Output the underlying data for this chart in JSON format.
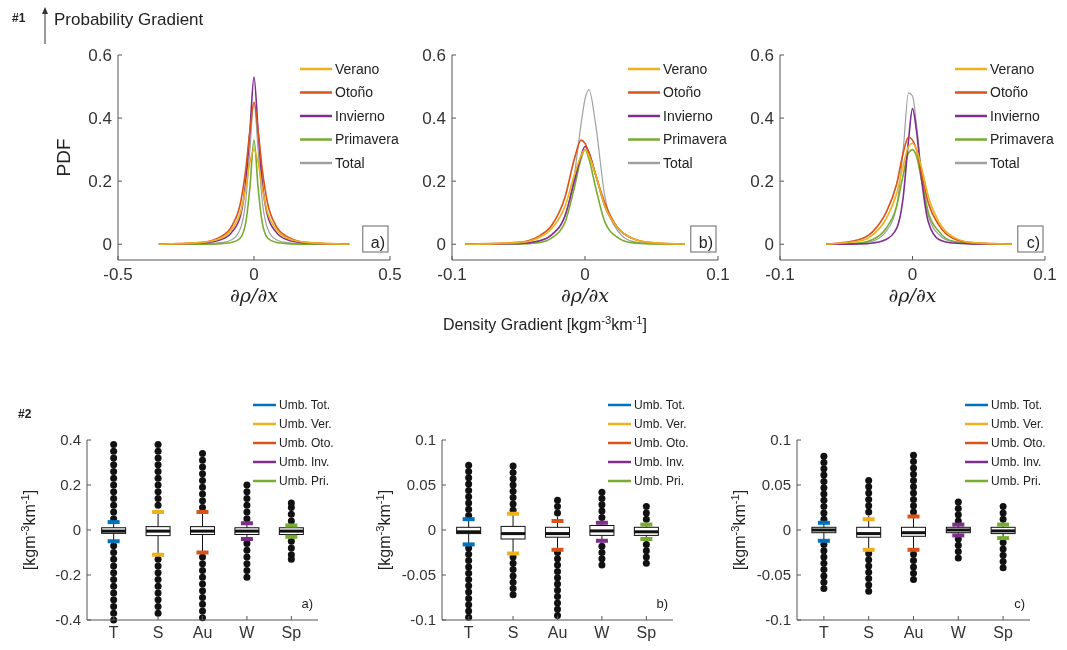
{
  "chart_data": [
    {
      "type": "line",
      "xlabel": "∂ρ/∂x",
      "ylabel": "PDF",
      "annotations": [
        "#1",
        "Probability Gradient",
        "a)"
      ],
      "legend": "top right",
      "xlim": [
        -0.5,
        0.5
      ],
      "xticks": [
        -0.5,
        0,
        0.5
      ],
      "ylim": [
        -0.05,
        0.6
      ],
      "yticks": [
        0,
        0.2,
        0.4,
        0.6
      ],
      "x": [
        -0.35,
        -0.2,
        -0.12,
        -0.08,
        -0.05,
        -0.03,
        -0.015,
        0,
        0.015,
        0.03,
        0.05,
        0.08,
        0.12,
        0.2,
        0.35
      ],
      "series": [
        {
          "name": "Verano",
          "color": "#edb120",
          "values": [
            0,
            0.005,
            0.02,
            0.05,
            0.1,
            0.18,
            0.26,
            0.3,
            0.26,
            0.18,
            0.1,
            0.05,
            0.02,
            0.005,
            0
          ]
        },
        {
          "name": "Otoño",
          "color": "#d95319",
          "values": [
            0,
            0.005,
            0.025,
            0.06,
            0.13,
            0.24,
            0.36,
            0.45,
            0.36,
            0.24,
            0.13,
            0.06,
            0.025,
            0.005,
            0
          ]
        },
        {
          "name": "Invierno",
          "color": "#7e2f8e",
          "values": [
            0,
            0.003,
            0.015,
            0.04,
            0.09,
            0.2,
            0.36,
            0.53,
            0.36,
            0.2,
            0.09,
            0.04,
            0.015,
            0.003,
            0
          ]
        },
        {
          "name": "Primavera",
          "color": "#77ac30",
          "values": [
            0,
            0,
            0.002,
            0.006,
            0.02,
            0.07,
            0.18,
            0.33,
            0.18,
            0.07,
            0.02,
            0.006,
            0.002,
            0,
            0
          ]
        },
        {
          "name": "Total",
          "color": "#a0a0a0",
          "values": [
            0,
            0.001,
            0.005,
            0.015,
            0.05,
            0.14,
            0.3,
            0.45,
            0.3,
            0.14,
            0.05,
            0.015,
            0.005,
            0.001,
            0
          ]
        }
      ]
    },
    {
      "type": "line",
      "xlabel": "∂ρ/∂x",
      "annotations": [
        "b)",
        "Density Gradient [kgm$^{-3}$km$^{-1}$]"
      ],
      "legend": "top right",
      "xlim": [
        -0.1,
        0.1
      ],
      "xticks": [
        -0.1,
        0,
        0.1
      ],
      "ylim": [
        -0.05,
        0.6
      ],
      "yticks": [
        0,
        0.2,
        0.4,
        0.6
      ],
      "x": [
        -0.09,
        -0.05,
        -0.035,
        -0.025,
        -0.015,
        -0.008,
        -0.003,
        0,
        0.003,
        0.008,
        0.015,
        0.025,
        0.035,
        0.05,
        0.075
      ],
      "series": [
        {
          "name": "Verano",
          "color": "#edb120",
          "values": [
            0,
            0.005,
            0.02,
            0.05,
            0.12,
            0.22,
            0.28,
            0.3,
            0.28,
            0.22,
            0.12,
            0.05,
            0.02,
            0.005,
            0
          ]
        },
        {
          "name": "Otoño",
          "color": "#d95319",
          "values": [
            0,
            0.006,
            0.025,
            0.06,
            0.15,
            0.27,
            0.33,
            0.32,
            0.29,
            0.22,
            0.13,
            0.05,
            0.02,
            0.005,
            0
          ]
        },
        {
          "name": "Invierno",
          "color": "#7e2f8e",
          "values": [
            0,
            0.002,
            0.01,
            0.03,
            0.09,
            0.2,
            0.28,
            0.31,
            0.29,
            0.22,
            0.12,
            0.05,
            0.02,
            null,
            null
          ]
        },
        {
          "name": "Primavera",
          "color": "#77ac30",
          "values": [
            0,
            0.001,
            0.005,
            0.02,
            0.07,
            0.18,
            0.27,
            0.3,
            0.27,
            0.18,
            0.07,
            0.02,
            0.005,
            0.001,
            0
          ]
        },
        {
          "name": "Total",
          "color": "#a0a0a0",
          "values": [
            0,
            0.002,
            0.01,
            0.03,
            0.09,
            0.22,
            0.38,
            0.46,
            0.49,
            0.38,
            0.15,
            0.04,
            0.01,
            0.002,
            0
          ]
        }
      ]
    },
    {
      "type": "line",
      "xlabel": "∂ρ/∂x",
      "annotations": [
        "c)"
      ],
      "legend": "top right",
      "xlim": [
        -0.1,
        0.1
      ],
      "xticks": [
        -0.1,
        0,
        0.1
      ],
      "ylim": [
        -0.05,
        0.6
      ],
      "yticks": [
        0,
        0.2,
        0.4,
        0.6
      ],
      "x": [
        -0.065,
        -0.04,
        -0.03,
        -0.02,
        -0.012,
        -0.007,
        -0.003,
        0,
        0.003,
        0.007,
        0.012,
        0.02,
        0.03,
        0.045,
        0.075
      ],
      "series": [
        {
          "name": "Verano",
          "color": "#edb120",
          "values": [
            0,
            0.01,
            0.03,
            0.08,
            0.16,
            0.25,
            0.31,
            0.32,
            0.3,
            0.24,
            0.15,
            0.07,
            0.025,
            0.005,
            0
          ]
        },
        {
          "name": "Otoño",
          "color": "#d95319",
          "values": [
            0,
            0.015,
            0.04,
            0.1,
            0.19,
            0.29,
            0.34,
            0.33,
            0.3,
            0.22,
            0.13,
            0.06,
            0.02,
            0.005,
            0
          ]
        },
        {
          "name": "Invierno",
          "color": "#7e2f8e",
          "values": [
            0,
            0.001,
            0.004,
            0.015,
            0.05,
            0.15,
            0.33,
            0.43,
            0.36,
            0.2,
            0.07,
            0.015,
            0.004,
            0.001,
            0
          ]
        },
        {
          "name": "Primavera",
          "color": "#77ac30",
          "values": [
            0,
            0.004,
            0.015,
            0.05,
            0.12,
            0.22,
            0.29,
            0.3,
            0.28,
            0.2,
            0.1,
            0.04,
            0.01,
            0.002,
            0
          ]
        },
        {
          "name": "Total",
          "color": "#a0a0a0",
          "values": [
            0,
            0.003,
            0.01,
            0.04,
            0.12,
            0.3,
            0.48,
            0.47,
            0.38,
            0.22,
            0.09,
            0.03,
            0.008,
            0.002,
            0
          ]
        }
      ]
    },
    {
      "type": "box",
      "color": "#111111",
      "ylabel": "[kgm$^{-3}$km$^{-1}$]",
      "annotations": [
        "#2",
        "a)"
      ],
      "legend": "top right",
      "categories": [
        "T",
        "S",
        "Au",
        "W",
        "Sp"
      ],
      "ylim": [
        -0.4,
        0.4
      ],
      "yticks": [
        -0.4,
        -0.2,
        0,
        0.2,
        0.4
      ],
      "boxes": [
        {
          "low": -0.05,
          "q1": -0.015,
          "median": -0.005,
          "q3": 0.01,
          "high": 0.04,
          "outliers": [
            0.05,
            0.08,
            0.11,
            0.14,
            0.17,
            0.2,
            0.23,
            0.26,
            0.29,
            0.32,
            0.35,
            0.38,
            -0.07,
            -0.1,
            -0.13,
            -0.16,
            -0.19,
            -0.22,
            -0.25,
            -0.28,
            -0.31,
            -0.34,
            -0.37,
            -0.4
          ]
        },
        {
          "low": -0.11,
          "q1": -0.025,
          "median": -0.005,
          "q3": 0.015,
          "high": 0.09,
          "outliers": [
            0.11,
            0.14,
            0.17,
            0.2,
            0.23,
            0.26,
            0.29,
            0.32,
            0.35,
            0.38,
            -0.13,
            -0.16,
            -0.19,
            -0.22,
            -0.25,
            -0.28,
            -0.31,
            -0.34,
            -0.37
          ]
        },
        {
          "low": -0.1,
          "q1": -0.02,
          "median": -0.005,
          "q3": 0.015,
          "high": 0.08,
          "outliers": [
            0.1,
            0.13,
            0.16,
            0.19,
            0.22,
            0.25,
            0.28,
            0.31,
            0.34,
            -0.12,
            -0.15,
            -0.18,
            -0.21,
            -0.24,
            -0.27,
            -0.3,
            -0.33,
            -0.36,
            -0.39
          ]
        },
        {
          "low": -0.04,
          "q1": -0.02,
          "median": -0.005,
          "q3": 0.01,
          "high": 0.03,
          "outliers": [
            0.05,
            0.08,
            0.11,
            0.14,
            0.17,
            0.2,
            -0.06,
            -0.09,
            -0.12,
            -0.15,
            -0.18,
            -0.21
          ]
        },
        {
          "low": -0.03,
          "q1": -0.02,
          "median": -0.005,
          "q3": 0.01,
          "high": 0.02,
          "outliers": [
            0.04,
            0.07,
            0.1,
            0.12,
            -0.05,
            -0.08,
            -0.11,
            -0.13
          ]
        }
      ],
      "series": [
        {
          "name": "Umb. Tot.",
          "type": "scatter",
          "color": "#0072bd",
          "x": [
            "T",
            "T"
          ],
          "values": [
            0.035,
            -0.05
          ]
        },
        {
          "name": "Umb. Ver.",
          "type": "scatter",
          "color": "#edb120",
          "x": [
            "S",
            "S"
          ],
          "values": [
            0.08,
            -0.11
          ]
        },
        {
          "name": "Umb. Oto.",
          "type": "scatter",
          "color": "#d95319",
          "x": [
            "Au",
            "Au"
          ],
          "values": [
            0.08,
            -0.1
          ]
        },
        {
          "name": "Umb. Inv.",
          "type": "scatter",
          "color": "#7e2f8e",
          "x": [
            "W",
            "W"
          ],
          "values": [
            0.03,
            -0.04
          ]
        },
        {
          "name": "Umb. Pri.",
          "type": "scatter",
          "color": "#77ac30",
          "x": [
            "Sp",
            "Sp"
          ],
          "values": [
            0.02,
            -0.03
          ]
        }
      ]
    },
    {
      "type": "box",
      "color": "#111111",
      "ylabel": "[kgm$^{-3}$km$^{-1}$]",
      "annotations": [
        "b)"
      ],
      "legend": "top right",
      "categories": [
        "T",
        "S",
        "Au",
        "W",
        "Sp"
      ],
      "ylim": [
        -0.1,
        0.1
      ],
      "yticks": [
        -0.1,
        -0.05,
        0,
        0.05,
        0.1
      ],
      "boxes": [
        {
          "low": -0.017,
          "q1": -0.004,
          "median": -0.002,
          "q3": 0.003,
          "high": 0.012,
          "outliers": [
            0.016,
            0.023,
            0.03,
            0.037,
            0.044,
            0.051,
            0.058,
            0.065,
            0.072,
            -0.02,
            -0.027,
            -0.034,
            -0.041,
            -0.048,
            -0.055,
            -0.062,
            -0.069,
            -0.076,
            -0.083,
            -0.09,
            -0.097
          ]
        },
        {
          "low": -0.026,
          "q1": -0.01,
          "median": -0.004,
          "q3": 0.004,
          "high": 0.018,
          "outliers": [
            0.022,
            0.029,
            0.036,
            0.043,
            0.05,
            0.057,
            0.064,
            0.071,
            -0.03,
            -0.037,
            -0.044,
            -0.051,
            -0.058,
            -0.065,
            -0.072
          ]
        },
        {
          "low": -0.022,
          "q1": -0.008,
          "median": -0.004,
          "q3": 0.003,
          "high": 0.015,
          "outliers": [
            0.019,
            0.026,
            0.033,
            -0.025,
            -0.032,
            -0.039,
            -0.046,
            -0.053,
            -0.06,
            -0.067,
            -0.074,
            -0.081,
            -0.088,
            -0.095
          ]
        },
        {
          "low": -0.014,
          "q1": -0.006,
          "median": -0.001,
          "q3": 0.005,
          "high": 0.01,
          "outliers": [
            0.014,
            0.021,
            0.028,
            0.035,
            0.042,
            -0.018,
            -0.025,
            -0.032,
            -0.039
          ]
        },
        {
          "low": -0.012,
          "q1": -0.006,
          "median": -0.002,
          "q3": 0.003,
          "high": 0.008,
          "outliers": [
            0.012,
            0.019,
            0.026,
            -0.016,
            -0.023,
            -0.03,
            -0.037
          ]
        }
      ],
      "series": [
        {
          "name": "Umb. Tot.",
          "type": "scatter",
          "color": "#0072bd",
          "x": [
            "T",
            "T"
          ],
          "values": [
            0.012,
            -0.016
          ]
        },
        {
          "name": "Umb. Ver.",
          "type": "scatter",
          "color": "#edb120",
          "x": [
            "S",
            "S"
          ],
          "values": [
            0.018,
            -0.026
          ]
        },
        {
          "name": "Umb. Oto.",
          "type": "scatter",
          "color": "#d95319",
          "x": [
            "Au",
            "Au"
          ],
          "values": [
            0.01,
            -0.022
          ]
        },
        {
          "name": "Umb. Inv.",
          "type": "scatter",
          "color": "#7e2f8e",
          "x": [
            "W",
            "W"
          ],
          "values": [
            0.008,
            -0.012
          ]
        },
        {
          "name": "Umb. Pri.",
          "type": "scatter",
          "color": "#77ac30",
          "x": [
            "Sp",
            "Sp"
          ],
          "values": [
            0.006,
            -0.01
          ]
        }
      ]
    },
    {
      "type": "box",
      "color": "#111111",
      "ylabel": "[kgm$^{-3}$km$^{-1}$]",
      "annotations": [
        "c)"
      ],
      "legend": "top right",
      "categories": [
        "T",
        "S",
        "Au",
        "W",
        "Sp"
      ],
      "ylim": [
        -0.1,
        0.1
      ],
      "yticks": [
        -0.1,
        -0.05,
        0,
        0.05,
        0.1
      ],
      "boxes": [
        {
          "low": -0.013,
          "q1": -0.003,
          "median": 0,
          "q3": 0.003,
          "high": 0.009,
          "outliers": [
            0.012,
            0.019,
            0.026,
            0.033,
            0.04,
            0.047,
            0.054,
            0.061,
            0.068,
            0.075,
            0.082,
            -0.016,
            -0.023,
            -0.03,
            -0.037,
            -0.044,
            -0.051,
            -0.058,
            -0.065
          ]
        },
        {
          "low": -0.024,
          "q1": -0.008,
          "median": -0.004,
          "q3": 0.003,
          "high": 0.016,
          "outliers": [
            0.02,
            0.027,
            0.034,
            0.041,
            0.048,
            0.055,
            -0.026,
            -0.033,
            -0.04,
            -0.047,
            -0.054,
            -0.061,
            -0.068
          ]
        },
        {
          "low": -0.024,
          "q1": -0.007,
          "median": -0.003,
          "q3": 0.003,
          "high": 0.017,
          "outliers": [
            0.02,
            0.027,
            0.034,
            0.041,
            0.048,
            0.055,
            0.062,
            0.069,
            0.076,
            0.083,
            -0.027,
            -0.034,
            -0.041,
            -0.048,
            -0.055
          ]
        },
        {
          "low": -0.008,
          "q1": -0.003,
          "median": 0,
          "q3": 0.003,
          "high": 0.007,
          "outliers": [
            0.01,
            0.017,
            0.024,
            0.031,
            -0.01,
            -0.017,
            -0.024,
            -0.031
          ]
        },
        {
          "low": -0.012,
          "q1": -0.004,
          "median": -0.001,
          "q3": 0.003,
          "high": 0.009,
          "outliers": [
            0.012,
            0.019,
            0.026,
            -0.014,
            -0.021,
            -0.028,
            -0.035,
            -0.042
          ]
        }
      ],
      "series": [
        {
          "name": "Umb. Tot.",
          "type": "scatter",
          "color": "#0072bd",
          "x": [
            "T",
            "T"
          ],
          "values": [
            0.008,
            -0.012
          ]
        },
        {
          "name": "Umb. Ver.",
          "type": "scatter",
          "color": "#edb120",
          "x": [
            "S",
            "S"
          ],
          "values": [
            0.012,
            -0.022
          ]
        },
        {
          "name": "Umb. Oto.",
          "type": "scatter",
          "color": "#d95319",
          "x": [
            "Au",
            "Au"
          ],
          "values": [
            0.015,
            -0.022
          ]
        },
        {
          "name": "Umb. Inv.",
          "type": "scatter",
          "color": "#7e2f8e",
          "x": [
            "W",
            "W"
          ],
          "values": [
            0.006,
            -0.006
          ]
        },
        {
          "name": "Umb. Pri.",
          "type": "scatter",
          "color": "#77ac30",
          "x": [
            "Sp",
            "Sp"
          ],
          "values": [
            0.006,
            -0.009
          ]
        }
      ]
    }
  ]
}
